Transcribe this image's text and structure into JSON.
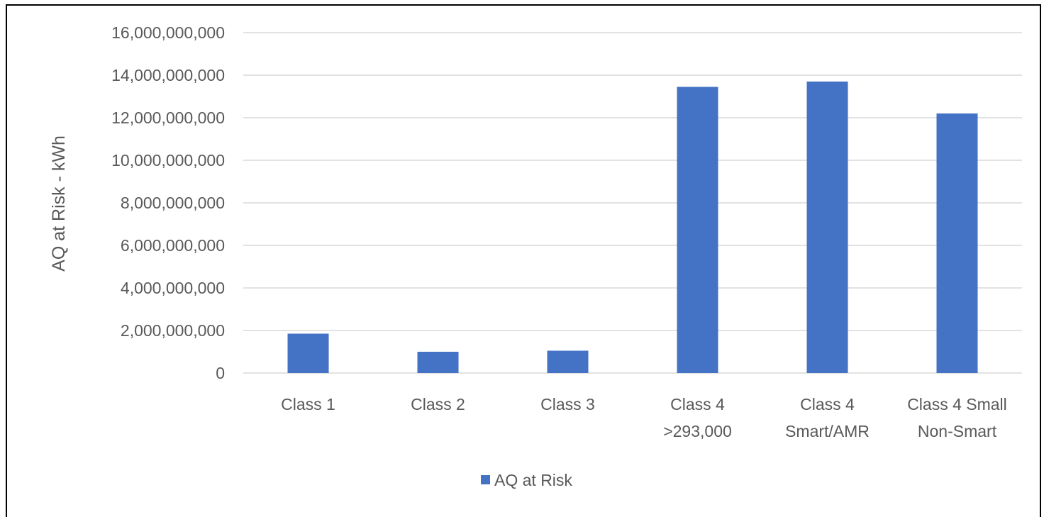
{
  "chart_data": {
    "type": "bar",
    "title": "",
    "xlabel": "",
    "ylabel": "AQ at Risk - kWh",
    "ylim": [
      0,
      16000000000
    ],
    "yticks": [
      "0",
      "2,000,000,000",
      "4,000,000,000",
      "6,000,000,000",
      "8,000,000,000",
      "10,000,000,000",
      "12,000,000,000",
      "14,000,000,000",
      "16,000,000,000"
    ],
    "categories": [
      [
        "Class 1"
      ],
      [
        "Class 2"
      ],
      [
        "Class 3"
      ],
      [
        "Class 4",
        ">293,000"
      ],
      [
        "Class 4",
        "Smart/AMR"
      ],
      [
        "Class 4 Small",
        "Non-Smart"
      ]
    ],
    "series": [
      {
        "name": "AQ at Risk",
        "color": "#4472C4",
        "values": [
          1850000000,
          1000000000,
          1050000000,
          13450000000,
          13700000000,
          12200000000
        ]
      }
    ],
    "grid": true,
    "legend": "bottom"
  }
}
